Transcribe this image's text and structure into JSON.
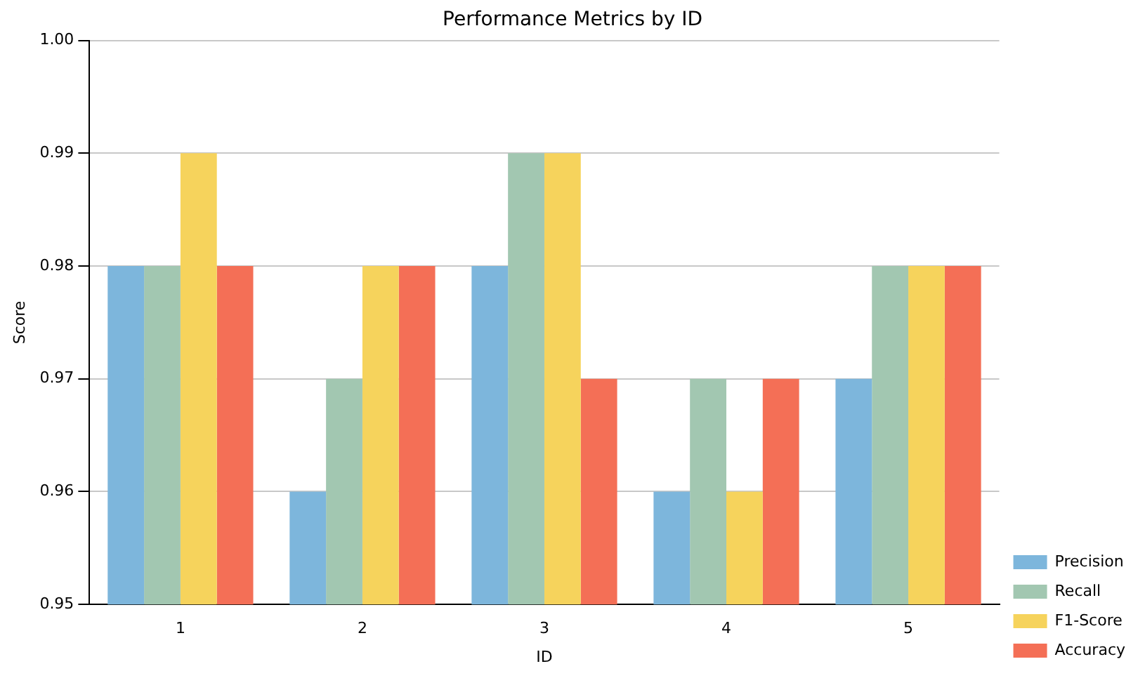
{
  "chart_data": {
    "type": "bar",
    "title": "Performance Metrics by ID",
    "xlabel": "ID",
    "ylabel": "Score",
    "categories": [
      "1",
      "2",
      "3",
      "4",
      "5"
    ],
    "series": [
      {
        "name": "Precision",
        "color": "#7db6dc",
        "values": [
          0.98,
          0.96,
          0.98,
          0.96,
          0.97
        ]
      },
      {
        "name": "Recall",
        "color": "#a2c7b1",
        "values": [
          0.98,
          0.97,
          0.99,
          0.97,
          0.98
        ]
      },
      {
        "name": "F1-Score",
        "color": "#f6d35c",
        "values": [
          0.99,
          0.98,
          0.99,
          0.96,
          0.98
        ]
      },
      {
        "name": "Accuracy",
        "color": "#f46f56",
        "values": [
          0.98,
          0.98,
          0.97,
          0.97,
          0.98
        ]
      }
    ],
    "ylim": [
      0.95,
      1
    ],
    "yticks": [
      0.95,
      0.96,
      0.97,
      0.98,
      0.99,
      {
        "value": 1,
        "label": "1.00"
      }
    ],
    "grid": "y",
    "legend": "right"
  }
}
